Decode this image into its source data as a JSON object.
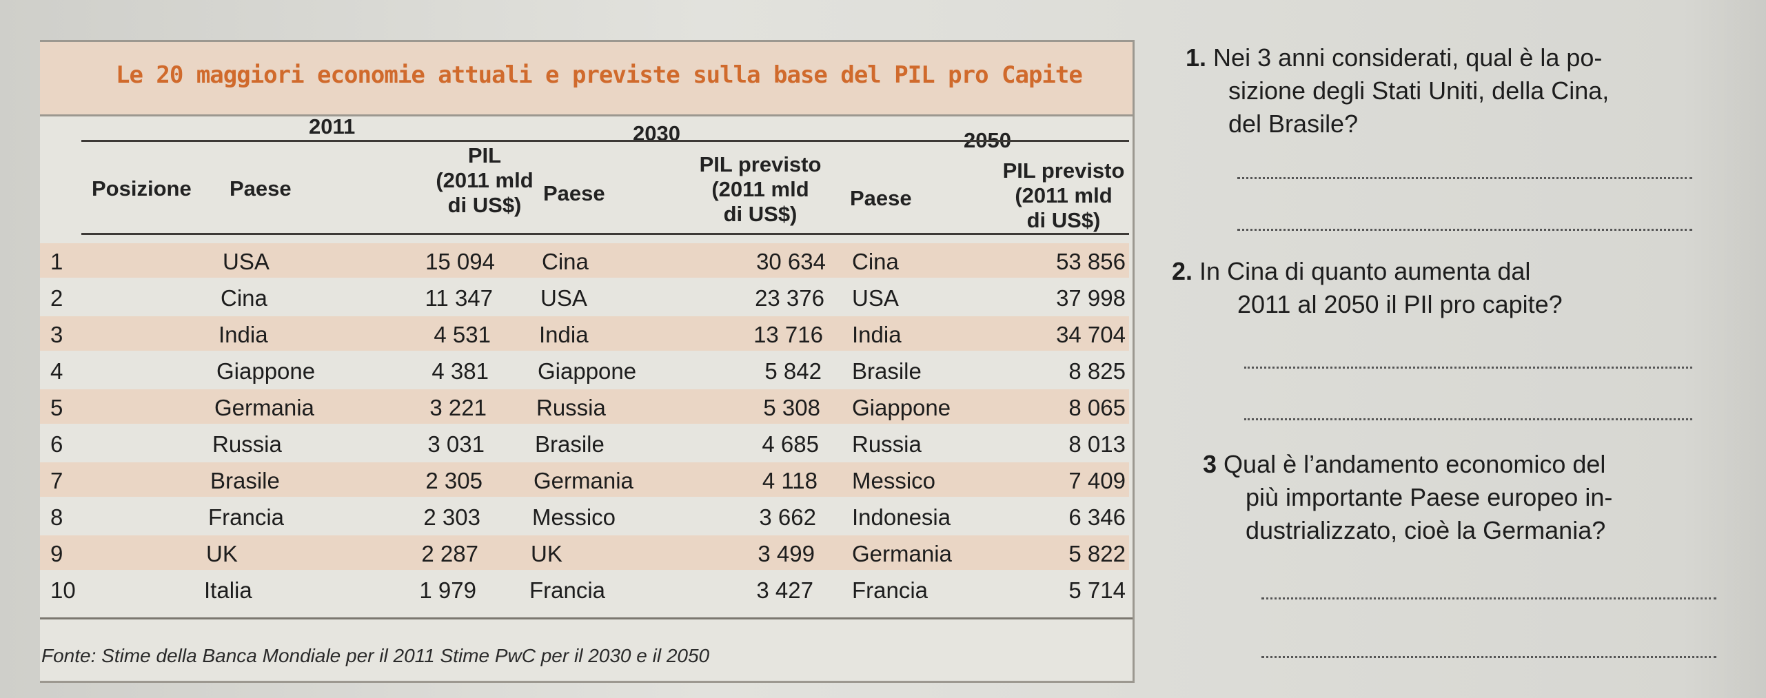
{
  "table": {
    "title": "Le 20 maggiori economie attuali e previste sulla base del PIL pro Capite",
    "years": [
      "2011",
      "2030",
      "2050"
    ],
    "headers": {
      "posizione": "Posizione",
      "paese_2011": "Paese",
      "pil_2011": [
        "PIL",
        "(2011 mld",
        "di US$)"
      ],
      "paese_2030": "Paese",
      "pil_2030": [
        "PIL previsto",
        "(2011 mld",
        "di US$)"
      ],
      "paese_2050": "Paese",
      "pil_2050": [
        "PIL previsto",
        "(2011 mld",
        "di US$)"
      ]
    },
    "rows": [
      {
        "pos": "1",
        "p11": "USA",
        "v11": "15 094",
        "p30": "Cina",
        "v30": "30 634",
        "p50": "Cina",
        "v50": "53 856"
      },
      {
        "pos": "2",
        "p11": "Cina",
        "v11": "11 347",
        "p30": "USA",
        "v30": "23 376",
        "p50": "USA",
        "v50": "37 998"
      },
      {
        "pos": "3",
        "p11": "India",
        "v11": "4 531",
        "p30": "India",
        "v30": "13 716",
        "p50": "India",
        "v50": "34 704"
      },
      {
        "pos": "4",
        "p11": "Giappone",
        "v11": "4 381",
        "p30": "Giappone",
        "v30": "5 842",
        "p50": "Brasile",
        "v50": "8 825"
      },
      {
        "pos": "5",
        "p11": "Germania",
        "v11": "3 221",
        "p30": "Russia",
        "v30": "5 308",
        "p50": "Giappone",
        "v50": "8 065"
      },
      {
        "pos": "6",
        "p11": "Russia",
        "v11": "3 031",
        "p30": "Brasile",
        "v30": "4 685",
        "p50": "Russia",
        "v50": "8 013"
      },
      {
        "pos": "7",
        "p11": "Brasile",
        "v11": "2 305",
        "p30": "Germania",
        "v30": "4 118",
        "p50": "Messico",
        "v50": "7 409"
      },
      {
        "pos": "8",
        "p11": "Francia",
        "v11": "2 303",
        "p30": "Messico",
        "v30": "3 662",
        "p50": "Indonesia",
        "v50": "6 346"
      },
      {
        "pos": "9",
        "p11": "UK",
        "v11": "2 287",
        "p30": "UK",
        "v30": "3 499",
        "p50": "Germania",
        "v50": "5 822"
      },
      {
        "pos": "10",
        "p11": "Italia",
        "v11": "1 979",
        "p30": "Francia",
        "v30": "3 427",
        "p50": "Francia",
        "v50": "5 714"
      }
    ],
    "source": "Fonte: Stime della Banca Mondiale per il 2011 Stime PwC per il 2030 e il 2050"
  },
  "questions": [
    {
      "number": "1.",
      "lines": [
        "Nei 3 anni considerati, qual è la po-",
        "sizione degli Stati Uniti, della Cina,",
        "del Brasile?"
      ]
    },
    {
      "number": "2.",
      "lines": [
        "In Cina di quanto aumenta dal",
        "2011 al 2050 il PIl pro capite?"
      ]
    },
    {
      "number": "3",
      "lines": [
        "Qual è l’andamento economico del",
        "più importante Paese europeo in-",
        "dustrializzato, cioè la Germania?"
      ]
    }
  ]
}
